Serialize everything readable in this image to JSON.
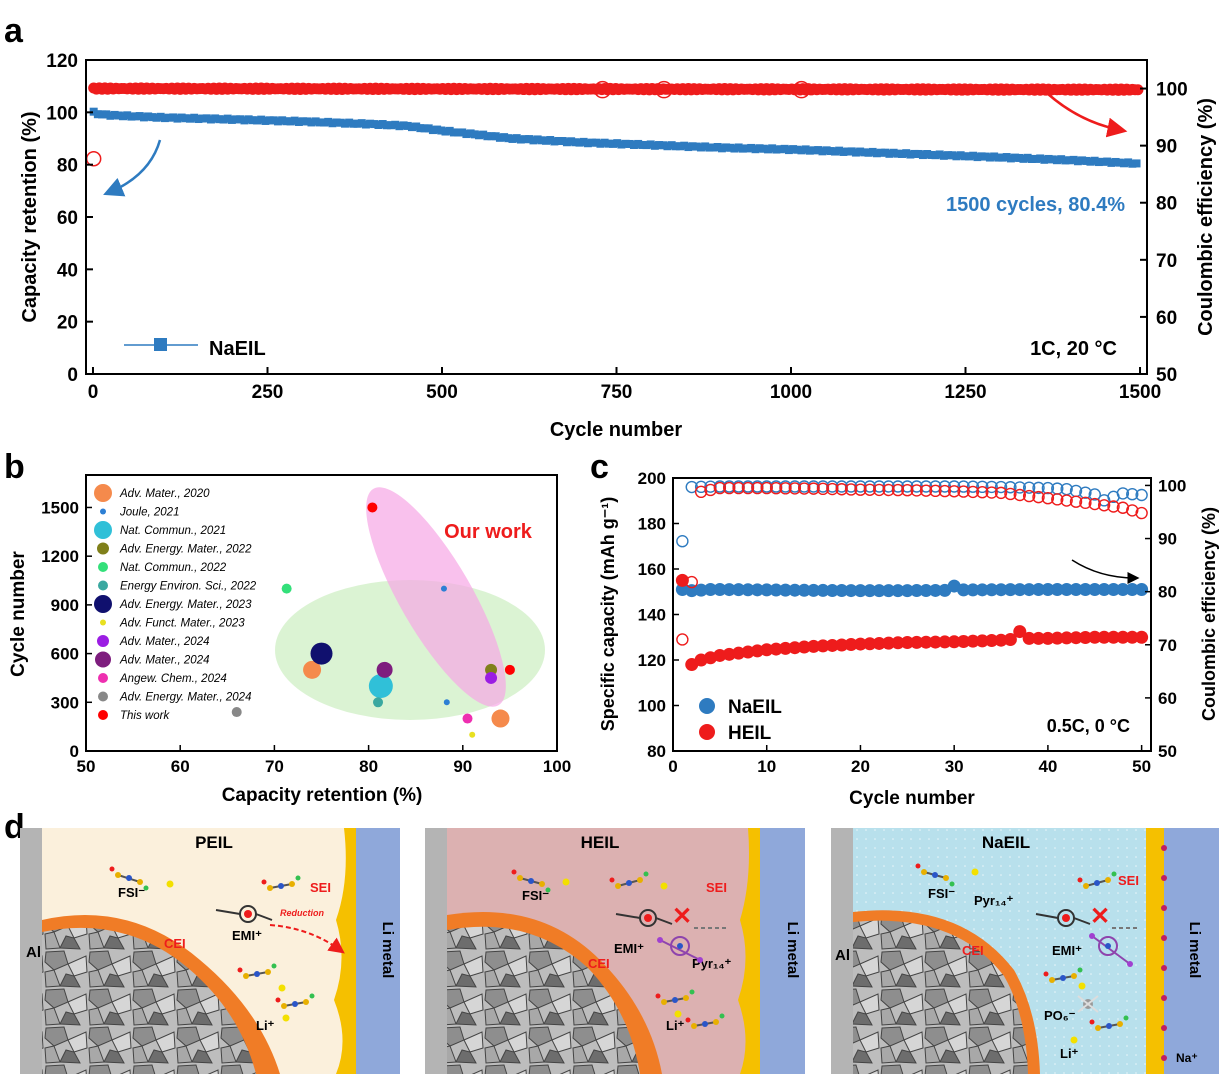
{
  "panel_labels": {
    "a": "a",
    "b": "b",
    "c": "c",
    "d": "d"
  },
  "chart_data": [
    {
      "id": "a",
      "type": "line",
      "xlabel": "Cycle number",
      "ylabel": "Capacity retention (%)",
      "y2label": "Coulombic efficiency (%)",
      "xlim": [
        -10,
        1510
      ],
      "ylim": [
        0,
        120
      ],
      "y2lim": [
        50,
        105
      ],
      "xticks": [
        "0",
        "250",
        "500",
        "750",
        "1000",
        "1250",
        "1500"
      ],
      "yticks": [
        "0",
        "20",
        "40",
        "60",
        "80",
        "100",
        "120"
      ],
      "y2ticks": [
        "50",
        "60",
        "70",
        "80",
        "90",
        "100"
      ],
      "series": [
        {
          "name": "NaEIL",
          "axis": "left",
          "color": "#2e7bc0",
          "x": [
            1,
            5,
            20,
            50,
            100,
            200,
            300,
            400,
            450,
            500,
            550,
            600,
            700,
            800,
            900,
            1000,
            1100,
            1200,
            1300,
            1400,
            1500
          ],
          "y": [
            100,
            99.5,
            99,
            98.6,
            98,
            97.3,
            96.5,
            95.5,
            94.8,
            93,
            91.5,
            90,
            88.5,
            87.5,
            86.5,
            85.8,
            84.8,
            83.8,
            82.8,
            81.7,
            80.4
          ]
        },
        {
          "name": "Coulombic efficiency",
          "axis": "right",
          "color": "#ee1c1c",
          "x": [
            0,
            1500
          ],
          "y": [
            100,
            99.8
          ]
        },
        {
          "name": "first-cycle CE",
          "axis": "right",
          "color": "#ee1c1c",
          "x": [
            1
          ],
          "y": [
            87.7
          ]
        }
      ],
      "annotations": {
        "result": "1500 cycles, 80.4%",
        "condition": "1C, 20 °C",
        "legend_label": "NaEIL"
      }
    },
    {
      "id": "b",
      "type": "scatter",
      "xlabel": "Capacity retention (%)",
      "ylabel": "Cycle number",
      "xlim": [
        50,
        100
      ],
      "ylim": [
        0,
        1700
      ],
      "xticks": [
        "50",
        "60",
        "70",
        "80",
        "90",
        "100"
      ],
      "yticks": [
        "0",
        "300",
        "600",
        "900",
        "1200",
        "1500"
      ],
      "annotation": "Our work",
      "series": [
        {
          "name": "Adv. Mater., 2020",
          "color": "#f58a4c",
          "r": 9,
          "points": [
            [
              74,
              500
            ],
            [
              94,
              200
            ]
          ]
        },
        {
          "name": "Joule, 2021",
          "color": "#2d7fd4",
          "r": 3,
          "points": [
            [
              88,
              1000
            ],
            [
              88.3,
              300
            ]
          ]
        },
        {
          "name": "Nat. Commun., 2021",
          "color": "#30c0d8",
          "r": 12,
          "points": [
            [
              81.3,
              400
            ]
          ]
        },
        {
          "name": "Adv. Energy. Mater., 2022",
          "color": "#80801a",
          "r": 6,
          "points": [
            [
              93,
              500
            ]
          ]
        },
        {
          "name": "Nat. Commun., 2022",
          "color": "#33e07a",
          "r": 5,
          "points": [
            [
              71.3,
              1000
            ]
          ]
        },
        {
          "name": "Energy Environ. Sci., 2022",
          "color": "#3aa8a0",
          "r": 5,
          "points": [
            [
              81,
              300
            ]
          ]
        },
        {
          "name": "Adv. Energy. Mater., 2023",
          "color": "#10106e",
          "r": 11,
          "points": [
            [
              75,
              600
            ]
          ]
        },
        {
          "name": "Adv. Funct. Mater., 2023",
          "color": "#e8e020",
          "r": 3,
          "points": [
            [
              91,
              100
            ]
          ]
        },
        {
          "name": "Adv. Mater., 2024",
          "color": "#9b1de3",
          "r": 6,
          "points": [
            [
              93,
              450
            ]
          ]
        },
        {
          "name": "Adv. Mater., 2024",
          "color": "#7e1d7e",
          "r": 8,
          "points": [
            [
              81.7,
              500
            ]
          ]
        },
        {
          "name": "Angew. Chem., 2024",
          "color": "#ee2fb0",
          "r": 5,
          "points": [
            [
              90.5,
              200
            ]
          ]
        },
        {
          "name": "Adv. Energy. Mater., 2024",
          "color": "#888888",
          "r": 5,
          "points": [
            [
              66,
              240
            ]
          ]
        },
        {
          "name": "This work",
          "color": "#ff0000",
          "r": 5,
          "points": [
            [
              80.4,
              1500
            ],
            [
              95,
              500
            ]
          ]
        }
      ]
    },
    {
      "id": "c",
      "type": "scatter",
      "xlabel": "Cycle number",
      "ylabel": "Specific capacity (mAh g⁻¹)",
      "y2label": "Coulombic efficiency (%)",
      "xlim": [
        0,
        51
      ],
      "ylim": [
        80,
        200
      ],
      "y2lim": [
        50,
        101.4
      ],
      "xticks": [
        "0",
        "10",
        "20",
        "30",
        "40",
        "50"
      ],
      "yticks": [
        "80",
        "100",
        "120",
        "140",
        "160",
        "180",
        "200"
      ],
      "y2ticks": [
        "50",
        "60",
        "70",
        "80",
        "90",
        "100"
      ],
      "annotation": "0.5C, 0 °C",
      "series": [
        {
          "name": "NaEIL",
          "color": "#2e7bc0",
          "axis": "left",
          "kind": "capacity",
          "x": [
            1,
            2,
            3,
            4,
            5,
            10,
            15,
            20,
            25,
            29,
            30,
            31,
            35,
            40,
            45,
            50
          ],
          "y": [
            151,
            150.5,
            150.7,
            151,
            151,
            150.8,
            150.6,
            150.5,
            150.5,
            150.6,
            152.5,
            150.8,
            150.9,
            151,
            151,
            151
          ]
        },
        {
          "name": "HEIL",
          "color": "#ee1c1c",
          "axis": "left",
          "kind": "capacity",
          "x": [
            1,
            2,
            3,
            5,
            10,
            15,
            20,
            25,
            30,
            35,
            36,
            37,
            38,
            40,
            45,
            50
          ],
          "y": [
            155,
            118,
            120,
            122,
            124.5,
            126,
            127,
            127.7,
            128,
            128.7,
            129,
            132.5,
            129.5,
            129.5,
            130,
            130
          ]
        },
        {
          "name": "NaEIL CE",
          "color": "#2e7bc0",
          "axis": "right",
          "kind": "ce",
          "x": [
            1,
            2,
            5,
            10,
            20,
            30,
            35,
            40,
            42,
            45,
            46,
            48,
            50
          ],
          "y": [
            89.5,
            99.7,
            99.8,
            99.8,
            99.8,
            99.8,
            99.7,
            99.5,
            99.3,
            98.3,
            97.2,
            98.5,
            98.2
          ]
        },
        {
          "name": "HEIL CE",
          "color": "#ee1c1c",
          "axis": "right",
          "kind": "ce",
          "x": [
            1,
            2,
            3,
            5,
            10,
            15,
            20,
            25,
            30,
            35,
            40,
            45,
            48,
            50
          ],
          "y": [
            71,
            81.8,
            98.8,
            99.5,
            99.5,
            99.4,
            99.2,
            99.1,
            98.9,
            98.6,
            97.6,
            96.5,
            95.8,
            94.8
          ]
        }
      ]
    }
  ],
  "schematics": [
    {
      "title": "PEIL",
      "labels": {
        "al": "Al",
        "metal": "Li metal",
        "fsi": "FSI⁻",
        "emi": "EMI⁺",
        "sei": "SEI",
        "cei": "CEI",
        "li": "Li⁺",
        "reduction": "Reduction"
      }
    },
    {
      "title": "HEIL",
      "labels": {
        "metal": "Li metal",
        "fsi": "FSI⁻",
        "emi": "EMI⁺",
        "sei": "SEI",
        "cei": "CEI",
        "li": "Li⁺",
        "pyr": "Pyr₁₄⁺"
      }
    },
    {
      "title": "NaEIL",
      "labels": {
        "al": "Al",
        "metal": "Li metal",
        "fsi": "FSI⁻",
        "emi": "EMI⁺",
        "sei": "SEI",
        "cei": "CEI",
        "li": "Li⁺",
        "pyr": "Pyr₁₄⁺",
        "po": "PO₆⁻",
        "na": "Na⁺"
      }
    }
  ]
}
